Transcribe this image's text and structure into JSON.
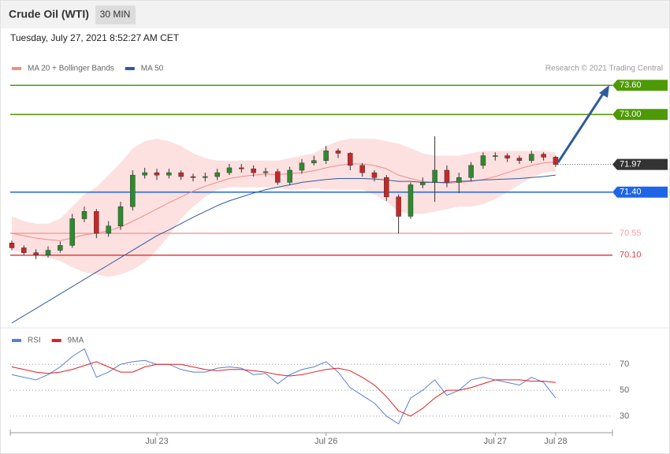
{
  "header": {
    "title": "Crude Oil (WTI)",
    "interval": "30 MIN",
    "timestamp": "Tuesday, July 27, 2021 8:52:27 AM CET",
    "credit": "Research © 2021 Trading Central"
  },
  "chart_data": [
    {
      "type": "candlestick",
      "xlim": [
        -0.13,
        49.7
      ],
      "ylim": [
        68.6,
        73.8
      ],
      "up_color": "#2e8b2e",
      "down_color": "#c62828",
      "open": [
        70.35,
        70.25,
        70.15,
        70.1,
        70.2,
        70.3,
        70.85,
        71.0,
        70.55,
        70.7,
        71.1,
        71.75,
        71.8,
        71.75,
        71.8,
        71.72,
        71.7,
        71.72,
        71.8,
        71.9,
        71.88,
        71.8,
        71.82,
        71.6,
        71.85,
        72.0,
        72.05,
        72.25,
        72.2,
        71.95,
        71.8,
        71.7,
        71.3,
        70.9,
        71.55,
        71.6,
        71.85,
        71.6,
        71.7,
        71.95,
        72.15,
        72.15,
        72.1,
        72.05,
        72.18,
        72.12
      ],
      "high": [
        70.4,
        70.3,
        70.22,
        70.28,
        70.38,
        70.95,
        71.1,
        71.05,
        70.8,
        71.2,
        71.85,
        71.9,
        71.88,
        71.88,
        71.85,
        71.78,
        71.8,
        71.88,
        71.98,
        71.98,
        71.95,
        71.9,
        71.88,
        71.92,
        72.08,
        72.15,
        72.35,
        72.3,
        72.22,
        72.0,
        71.85,
        71.75,
        71.35,
        71.6,
        71.7,
        72.55,
        71.95,
        71.8,
        72.02,
        72.22,
        72.22,
        72.2,
        72.15,
        72.25,
        72.22,
        72.15
      ],
      "low": [
        70.2,
        70.1,
        70.02,
        70.05,
        70.15,
        70.25,
        70.78,
        70.45,
        70.48,
        70.62,
        71.02,
        71.68,
        71.65,
        71.68,
        71.65,
        71.62,
        71.62,
        71.65,
        71.75,
        71.8,
        71.72,
        71.72,
        71.55,
        71.55,
        71.78,
        71.95,
        71.98,
        72.1,
        71.85,
        71.72,
        71.62,
        71.22,
        70.55,
        70.85,
        71.48,
        71.2,
        71.5,
        71.38,
        71.62,
        71.88,
        72.05,
        72.02,
        71.98,
        72.0,
        72.05,
        71.92
      ],
      "close": [
        70.25,
        70.15,
        70.1,
        70.2,
        70.3,
        70.85,
        71.0,
        70.55,
        70.7,
        71.1,
        71.75,
        71.8,
        71.75,
        71.8,
        71.72,
        71.7,
        71.72,
        71.8,
        71.9,
        71.88,
        71.8,
        71.82,
        71.6,
        71.85,
        72.0,
        72.05,
        72.25,
        72.2,
        71.95,
        71.8,
        71.7,
        71.3,
        70.9,
        71.55,
        71.6,
        71.85,
        71.6,
        71.7,
        71.95,
        72.15,
        72.15,
        72.1,
        72.05,
        72.18,
        72.12,
        71.97
      ],
      "series": [
        {
          "name": "MA 20 + Bollinger Bands",
          "color": "#f08c8c",
          "band_color": "#fde0e0",
          "values": [
            70.55,
            70.5,
            70.45,
            70.42,
            70.4,
            70.45,
            70.52,
            70.55,
            70.6,
            70.68,
            70.8,
            70.92,
            71.05,
            71.18,
            71.3,
            71.42,
            71.52,
            71.6,
            71.68,
            71.72,
            71.75,
            71.77,
            71.76,
            71.78,
            71.8,
            71.84,
            71.9,
            71.95,
            71.98,
            71.98,
            71.95,
            71.88,
            71.75,
            71.68,
            71.62,
            71.6,
            71.58,
            71.6,
            71.62,
            71.66,
            71.72,
            71.8,
            71.88,
            71.95,
            72.0,
            72.02
          ],
          "upper": [
            70.9,
            70.8,
            70.75,
            70.75,
            70.85,
            71.1,
            71.35,
            71.5,
            71.75,
            72.0,
            72.3,
            72.45,
            72.5,
            72.45,
            72.35,
            72.2,
            72.1,
            72.05,
            72.05,
            72.05,
            72.05,
            72.05,
            72.05,
            72.1,
            72.15,
            72.2,
            72.35,
            72.45,
            72.5,
            72.5,
            72.5,
            72.45,
            72.4,
            72.3,
            72.2,
            72.15,
            72.15,
            72.15,
            72.2,
            72.25,
            72.25,
            72.25,
            72.25,
            72.25,
            72.25,
            72.22
          ],
          "lower": [
            70.2,
            70.15,
            70.1,
            70.05,
            69.98,
            69.85,
            69.75,
            69.7,
            69.65,
            69.7,
            69.8,
            69.95,
            70.2,
            70.5,
            70.85,
            71.1,
            71.3,
            71.45,
            71.5,
            71.5,
            71.5,
            71.5,
            71.48,
            71.45,
            71.45,
            71.48,
            71.45,
            71.45,
            71.45,
            71.45,
            71.35,
            71.2,
            71.0,
            70.95,
            70.95,
            71.0,
            71.05,
            71.1,
            71.1,
            71.15,
            71.25,
            71.4,
            71.55,
            71.7,
            71.8,
            71.82
          ]
        },
        {
          "name": "MA 50",
          "color": "#2f5b9a",
          "values": [
            68.7,
            68.85,
            69.0,
            69.15,
            69.3,
            69.45,
            69.6,
            69.75,
            69.9,
            70.05,
            70.2,
            70.35,
            70.5,
            70.62,
            70.75,
            70.88,
            71.0,
            71.12,
            71.22,
            71.3,
            71.38,
            71.45,
            71.5,
            71.55,
            71.6,
            71.63,
            71.66,
            71.68,
            71.68,
            71.68,
            71.67,
            71.65,
            71.62,
            71.62,
            71.6,
            71.6,
            71.6,
            71.62,
            71.63,
            71.65,
            71.66,
            71.67,
            71.68,
            71.7,
            71.72,
            71.75
          ]
        }
      ],
      "levels": [
        {
          "value": 73.6,
          "label": "73.60",
          "color": "#4e9a06",
          "style": "box"
        },
        {
          "value": 73.0,
          "label": "73.00",
          "color": "#4e9a06",
          "style": "box"
        },
        {
          "value": 71.97,
          "label": "71.97",
          "color": "#333333",
          "style": "current"
        },
        {
          "value": 71.4,
          "label": "71.40",
          "color": "#1e66e6",
          "style": "box"
        },
        {
          "value": 70.55,
          "label": "70.55",
          "color": "#f4a0a0",
          "style": "text"
        },
        {
          "value": 70.1,
          "label": "70.10",
          "color": "#e04040",
          "style": "text"
        }
      ]
    },
    {
      "type": "line",
      "xlim": [
        -0.13,
        49.7
      ],
      "ylim": [
        19,
        89
      ],
      "yticks": [
        70,
        50,
        30
      ],
      "xticks": [
        {
          "value": 12,
          "label": "Jul 23"
        },
        {
          "value": 26,
          "label": "Jul 26"
        },
        {
          "value": 40,
          "label": "Jul 27"
        },
        {
          "value": 45,
          "label": "Jul 28"
        }
      ],
      "series": [
        {
          "name": "RSI",
          "color": "#5b7fd6",
          "values": [
            62,
            60,
            58,
            62,
            68,
            76,
            82,
            60,
            64,
            70,
            72,
            73,
            70,
            70,
            66,
            64,
            64,
            67,
            68,
            67,
            62,
            63,
            55,
            62,
            66,
            68,
            72,
            64,
            52,
            46,
            40,
            30,
            24,
            44,
            50,
            58,
            46,
            50,
            58,
            60,
            58,
            56,
            54,
            60,
            56,
            44
          ]
        },
        {
          "name": "9MA",
          "color": "#e02020",
          "values": [
            68,
            66,
            64,
            63,
            64,
            66,
            69,
            72,
            68,
            64,
            64,
            68,
            70,
            70,
            70,
            68,
            66,
            65,
            66,
            66,
            65,
            64,
            62,
            61,
            62,
            64,
            66,
            67,
            65,
            60,
            54,
            45,
            34,
            30,
            36,
            44,
            50,
            50,
            52,
            55,
            58,
            58,
            58,
            57,
            57,
            56
          ]
        }
      ]
    }
  ]
}
